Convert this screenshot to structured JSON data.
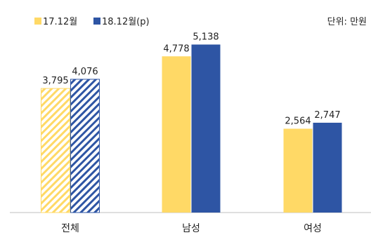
{
  "chart_data": {
    "type": "bar",
    "categories": [
      "전체",
      "남성",
      "여성"
    ],
    "series": [
      {
        "name": "17.12월",
        "values": [
          3795,
          4778,
          2564
        ],
        "value_labels": [
          "3,795",
          "4,778",
          "2,564"
        ],
        "color": "#FFD966"
      },
      {
        "name": "18.12월(p)",
        "values": [
          4076,
          5138,
          2747
        ],
        "value_labels": [
          "4,076",
          "5,138",
          "2,747"
        ],
        "color": "#2E55A4"
      }
    ],
    "hatched_category": "전체",
    "unit_label": "단위: 만원",
    "legend_position": "top-left",
    "ylim": [
      0,
      6500
    ],
    "grid": false
  }
}
